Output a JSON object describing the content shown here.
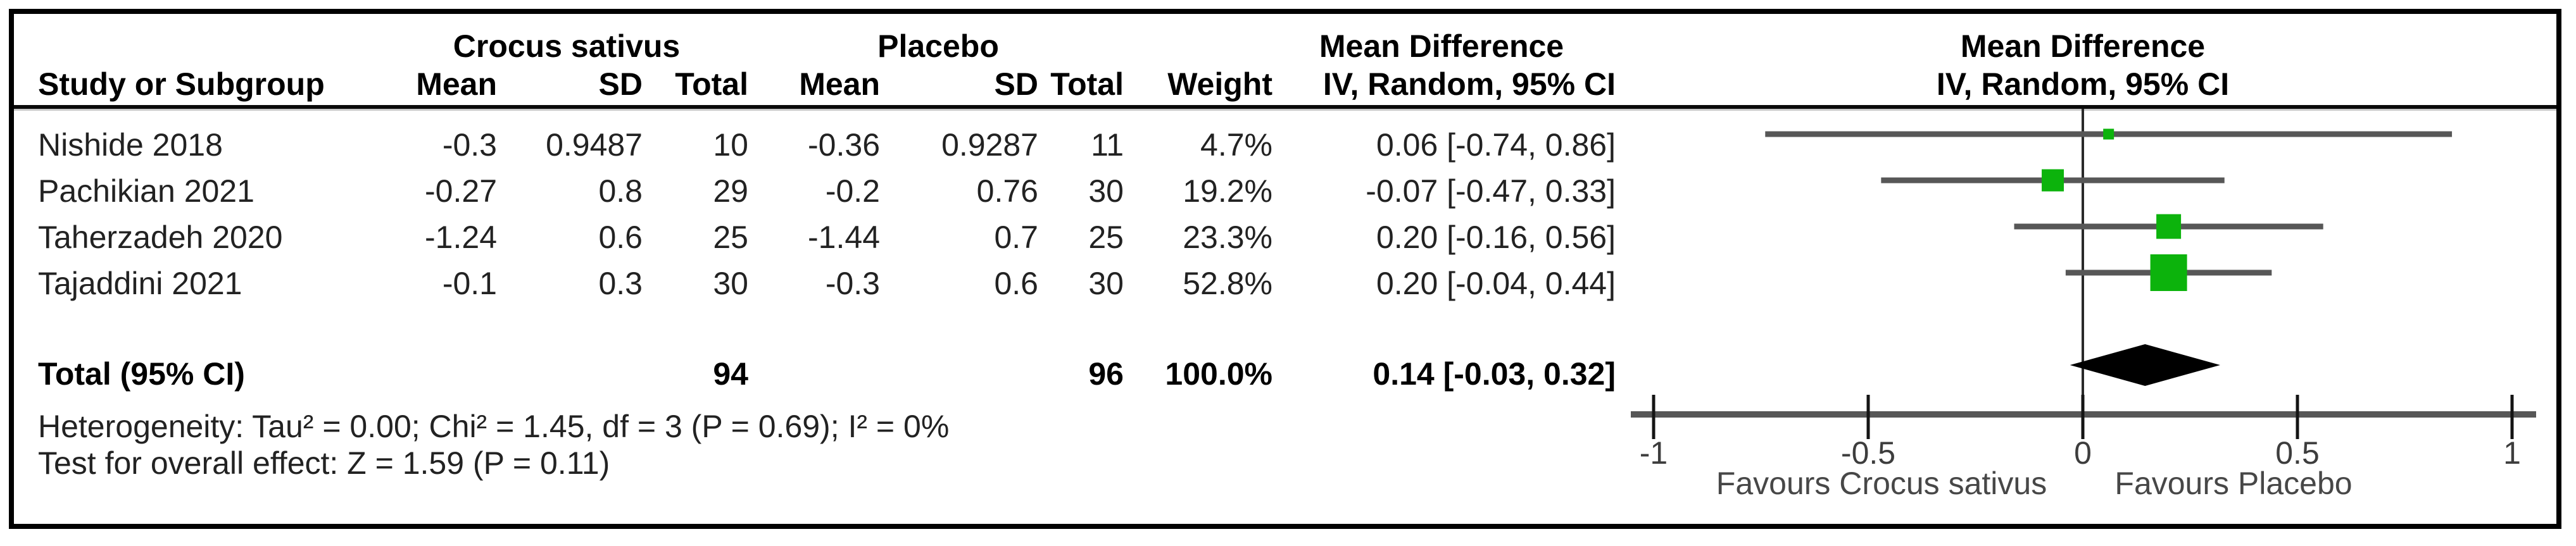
{
  "colors": {
    "marker_green": "#0cb30c",
    "ci_line_gray": "#575757",
    "axis_gray": "#575757",
    "tick_black": "#141414",
    "zero_line": "#2a2a2a",
    "diamond_black": "#000000"
  },
  "header": {
    "group1": "Crocus sativus",
    "group2": "Placebo",
    "effect_text_col": {
      "line1": "Mean Difference",
      "line2": "IV, Random, 95% CI"
    },
    "effect_plot_col": {
      "line1": "Mean Difference",
      "line2": "IV, Random, 95% CI"
    },
    "study_col": "Study or Subgroup",
    "mean_col": "Mean",
    "sd_col": "SD",
    "total_col": "Total",
    "weight_col": "Weight"
  },
  "rows": [
    {
      "study": "Nishide 2018",
      "mean1": "-0.3",
      "sd1": "0.9487",
      "total1": "10",
      "mean2": "-0.36",
      "sd2": "0.9287",
      "total2": "11",
      "weight": "4.7%",
      "ci": "0.06 [-0.74, 0.86]"
    },
    {
      "study": "Pachikian 2021",
      "mean1": "-0.27",
      "sd1": "0.8",
      "total1": "29",
      "mean2": "-0.2",
      "sd2": "0.76",
      "total2": "30",
      "weight": "19.2%",
      "ci": "-0.07 [-0.47, 0.33]"
    },
    {
      "study": "Taherzadeh 2020",
      "mean1": "-1.24",
      "sd1": "0.6",
      "total1": "25",
      "mean2": "-1.44",
      "sd2": "0.7",
      "total2": "25",
      "weight": "23.3%",
      "ci": "0.20 [-0.16, 0.56]"
    },
    {
      "study": "Tajaddini 2021",
      "mean1": "-0.1",
      "sd1": "0.3",
      "total1": "30",
      "mean2": "-0.3",
      "sd2": "0.6",
      "total2": "30",
      "weight": "52.8%",
      "ci": "0.20 [-0.04, 0.44]"
    }
  ],
  "total_row": {
    "label": "Total (95% CI)",
    "total1": "94",
    "total2": "96",
    "weight": "100.0%",
    "ci": "0.14 [-0.03, 0.32]"
  },
  "footnotes": {
    "heterogeneity": "Heterogeneity: Tau² = 0.00; Chi² = 1.45, df = 3 (P = 0.69); I² = 0%",
    "overall_effect": "Test for overall effect: Z = 1.59 (P = 0.11)"
  },
  "axis": {
    "favours_left": "Favours Crocus sativus",
    "favours_right": "Favours Placebo"
  },
  "chart_data": {
    "type": "forest",
    "title": "Mean Difference, IV, Random, 95% CI",
    "effect_measure": "Mean Difference",
    "model": "IV, Random, 95% CI",
    "xlim": [
      -1,
      1
    ],
    "ticks": [
      -1,
      -0.5,
      0,
      0.5,
      1
    ],
    "tick_labels": [
      "-1",
      "-0.5",
      "0",
      "0.5",
      "1"
    ],
    "studies": [
      {
        "name": "Nishide 2018",
        "md": 0.06,
        "ci_low": -0.74,
        "ci_high": 0.86,
        "weight_pct": 4.7,
        "n_treat": 10,
        "n_ctrl": 11
      },
      {
        "name": "Pachikian 2021",
        "md": -0.07,
        "ci_low": -0.47,
        "ci_high": 0.33,
        "weight_pct": 19.2,
        "n_treat": 29,
        "n_ctrl": 30
      },
      {
        "name": "Taherzadeh 2020",
        "md": 0.2,
        "ci_low": -0.16,
        "ci_high": 0.56,
        "weight_pct": 23.3,
        "n_treat": 25,
        "n_ctrl": 25
      },
      {
        "name": "Tajaddini 2021",
        "md": 0.2,
        "ci_low": -0.04,
        "ci_high": 0.44,
        "weight_pct": 52.8,
        "n_treat": 30,
        "n_ctrl": 30
      }
    ],
    "total": {
      "md": 0.14,
      "ci_low": -0.03,
      "ci_high": 0.32,
      "n_treat": 94,
      "n_ctrl": 96,
      "weight_pct": 100.0
    },
    "heterogeneity": "Tau² = 0.00; Chi² = 1.45, df = 3 (P = 0.69); I² = 0%",
    "overall_test": "Z = 1.59 (P = 0.11)",
    "favours": [
      "Favours Crocus sativus",
      "Favours Placebo"
    ]
  }
}
